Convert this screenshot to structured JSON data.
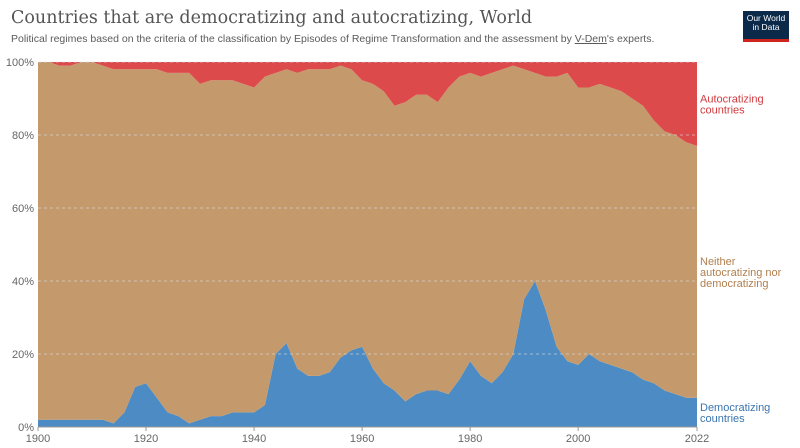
{
  "title": "Countries that are democratizing and autocratizing, World",
  "subtitle_before": "Political regimes based on the criteria of the classification by Episodes of Regime Transformation and the assessment by ",
  "subtitle_link": "V-Dem",
  "subtitle_after": "'s experts.",
  "logo": {
    "line1": "Our World",
    "line2": "in Data"
  },
  "colors": {
    "democratizing": "#4c8bc3",
    "neither": "#c49a6c",
    "autocratizing": "#dd4a4c"
  },
  "chart_data": {
    "type": "area",
    "stacked": true,
    "normalized": true,
    "xlim": [
      1900,
      2022
    ],
    "ylim": [
      0,
      100
    ],
    "x_ticks": [
      1900,
      1920,
      1940,
      1960,
      1980,
      2000,
      2022
    ],
    "y_ticks": [
      {
        "value": 0,
        "label": "0%"
      },
      {
        "value": 20,
        "label": "20%"
      },
      {
        "value": 40,
        "label": "40%"
      },
      {
        "value": 60,
        "label": "60%"
      },
      {
        "value": 80,
        "label": "80%"
      },
      {
        "value": 100,
        "label": "100%"
      }
    ],
    "grid": true,
    "x": [
      1900,
      1902,
      1904,
      1906,
      1908,
      1910,
      1912,
      1914,
      1916,
      1918,
      1920,
      1922,
      1924,
      1926,
      1928,
      1930,
      1932,
      1934,
      1936,
      1938,
      1940,
      1942,
      1944,
      1946,
      1948,
      1950,
      1952,
      1954,
      1956,
      1958,
      1960,
      1962,
      1964,
      1966,
      1968,
      1970,
      1972,
      1974,
      1976,
      1978,
      1980,
      1982,
      1984,
      1986,
      1988,
      1990,
      1992,
      1994,
      1996,
      1998,
      2000,
      2002,
      2004,
      2006,
      2008,
      2010,
      2012,
      2014,
      2016,
      2018,
      2020,
      2022
    ],
    "series": [
      {
        "name": "Democratizing countries",
        "label_lines": [
          "Democratizing",
          "countries"
        ],
        "color": "#4c8bc3",
        "values": [
          2,
          2,
          2,
          2,
          2,
          2,
          2,
          1,
          4,
          11,
          12,
          8,
          4,
          3,
          1,
          2,
          3,
          3,
          4,
          4,
          4,
          6,
          20,
          23,
          16,
          14,
          14,
          15,
          19,
          21,
          22,
          16,
          12,
          10,
          7,
          9,
          10,
          10,
          9,
          13,
          18,
          14,
          12,
          15,
          20,
          35,
          40,
          32,
          22,
          18,
          17,
          20,
          18,
          17,
          16,
          15,
          13,
          12,
          10,
          9,
          8,
          8
        ]
      },
      {
        "name": "Neither autocratizing nor democratizing",
        "label_lines": [
          "Neither",
          "autocratizing nor",
          "democratizing"
        ],
        "color": "#c49a6c",
        "values": [
          98,
          98,
          97,
          97,
          98,
          98,
          97,
          97,
          94,
          87,
          86,
          90,
          93,
          94,
          96,
          92,
          92,
          92,
          91,
          90,
          89,
          90,
          77,
          75,
          81,
          84,
          84,
          83,
          80,
          77,
          73,
          78,
          80,
          78,
          82,
          82,
          81,
          79,
          84,
          83,
          79,
          82,
          85,
          83,
          79,
          63,
          57,
          64,
          74,
          79,
          76,
          73,
          76,
          76,
          76,
          75,
          75,
          72,
          71,
          71,
          70,
          69
        ]
      },
      {
        "name": "Autocratizing countries",
        "label_lines": [
          "Autocratizing",
          "countries"
        ],
        "color": "#dd4a4c",
        "values": [
          0,
          0,
          1,
          1,
          0,
          0,
          1,
          2,
          2,
          2,
          2,
          2,
          3,
          3,
          3,
          6,
          5,
          5,
          5,
          6,
          7,
          4,
          3,
          2,
          3,
          2,
          2,
          2,
          1,
          2,
          5,
          6,
          8,
          12,
          11,
          9,
          9,
          11,
          7,
          4,
          3,
          4,
          3,
          2,
          1,
          2,
          3,
          4,
          4,
          3,
          7,
          7,
          6,
          7,
          8,
          10,
          12,
          16,
          19,
          20,
          22,
          23
        ]
      }
    ]
  }
}
